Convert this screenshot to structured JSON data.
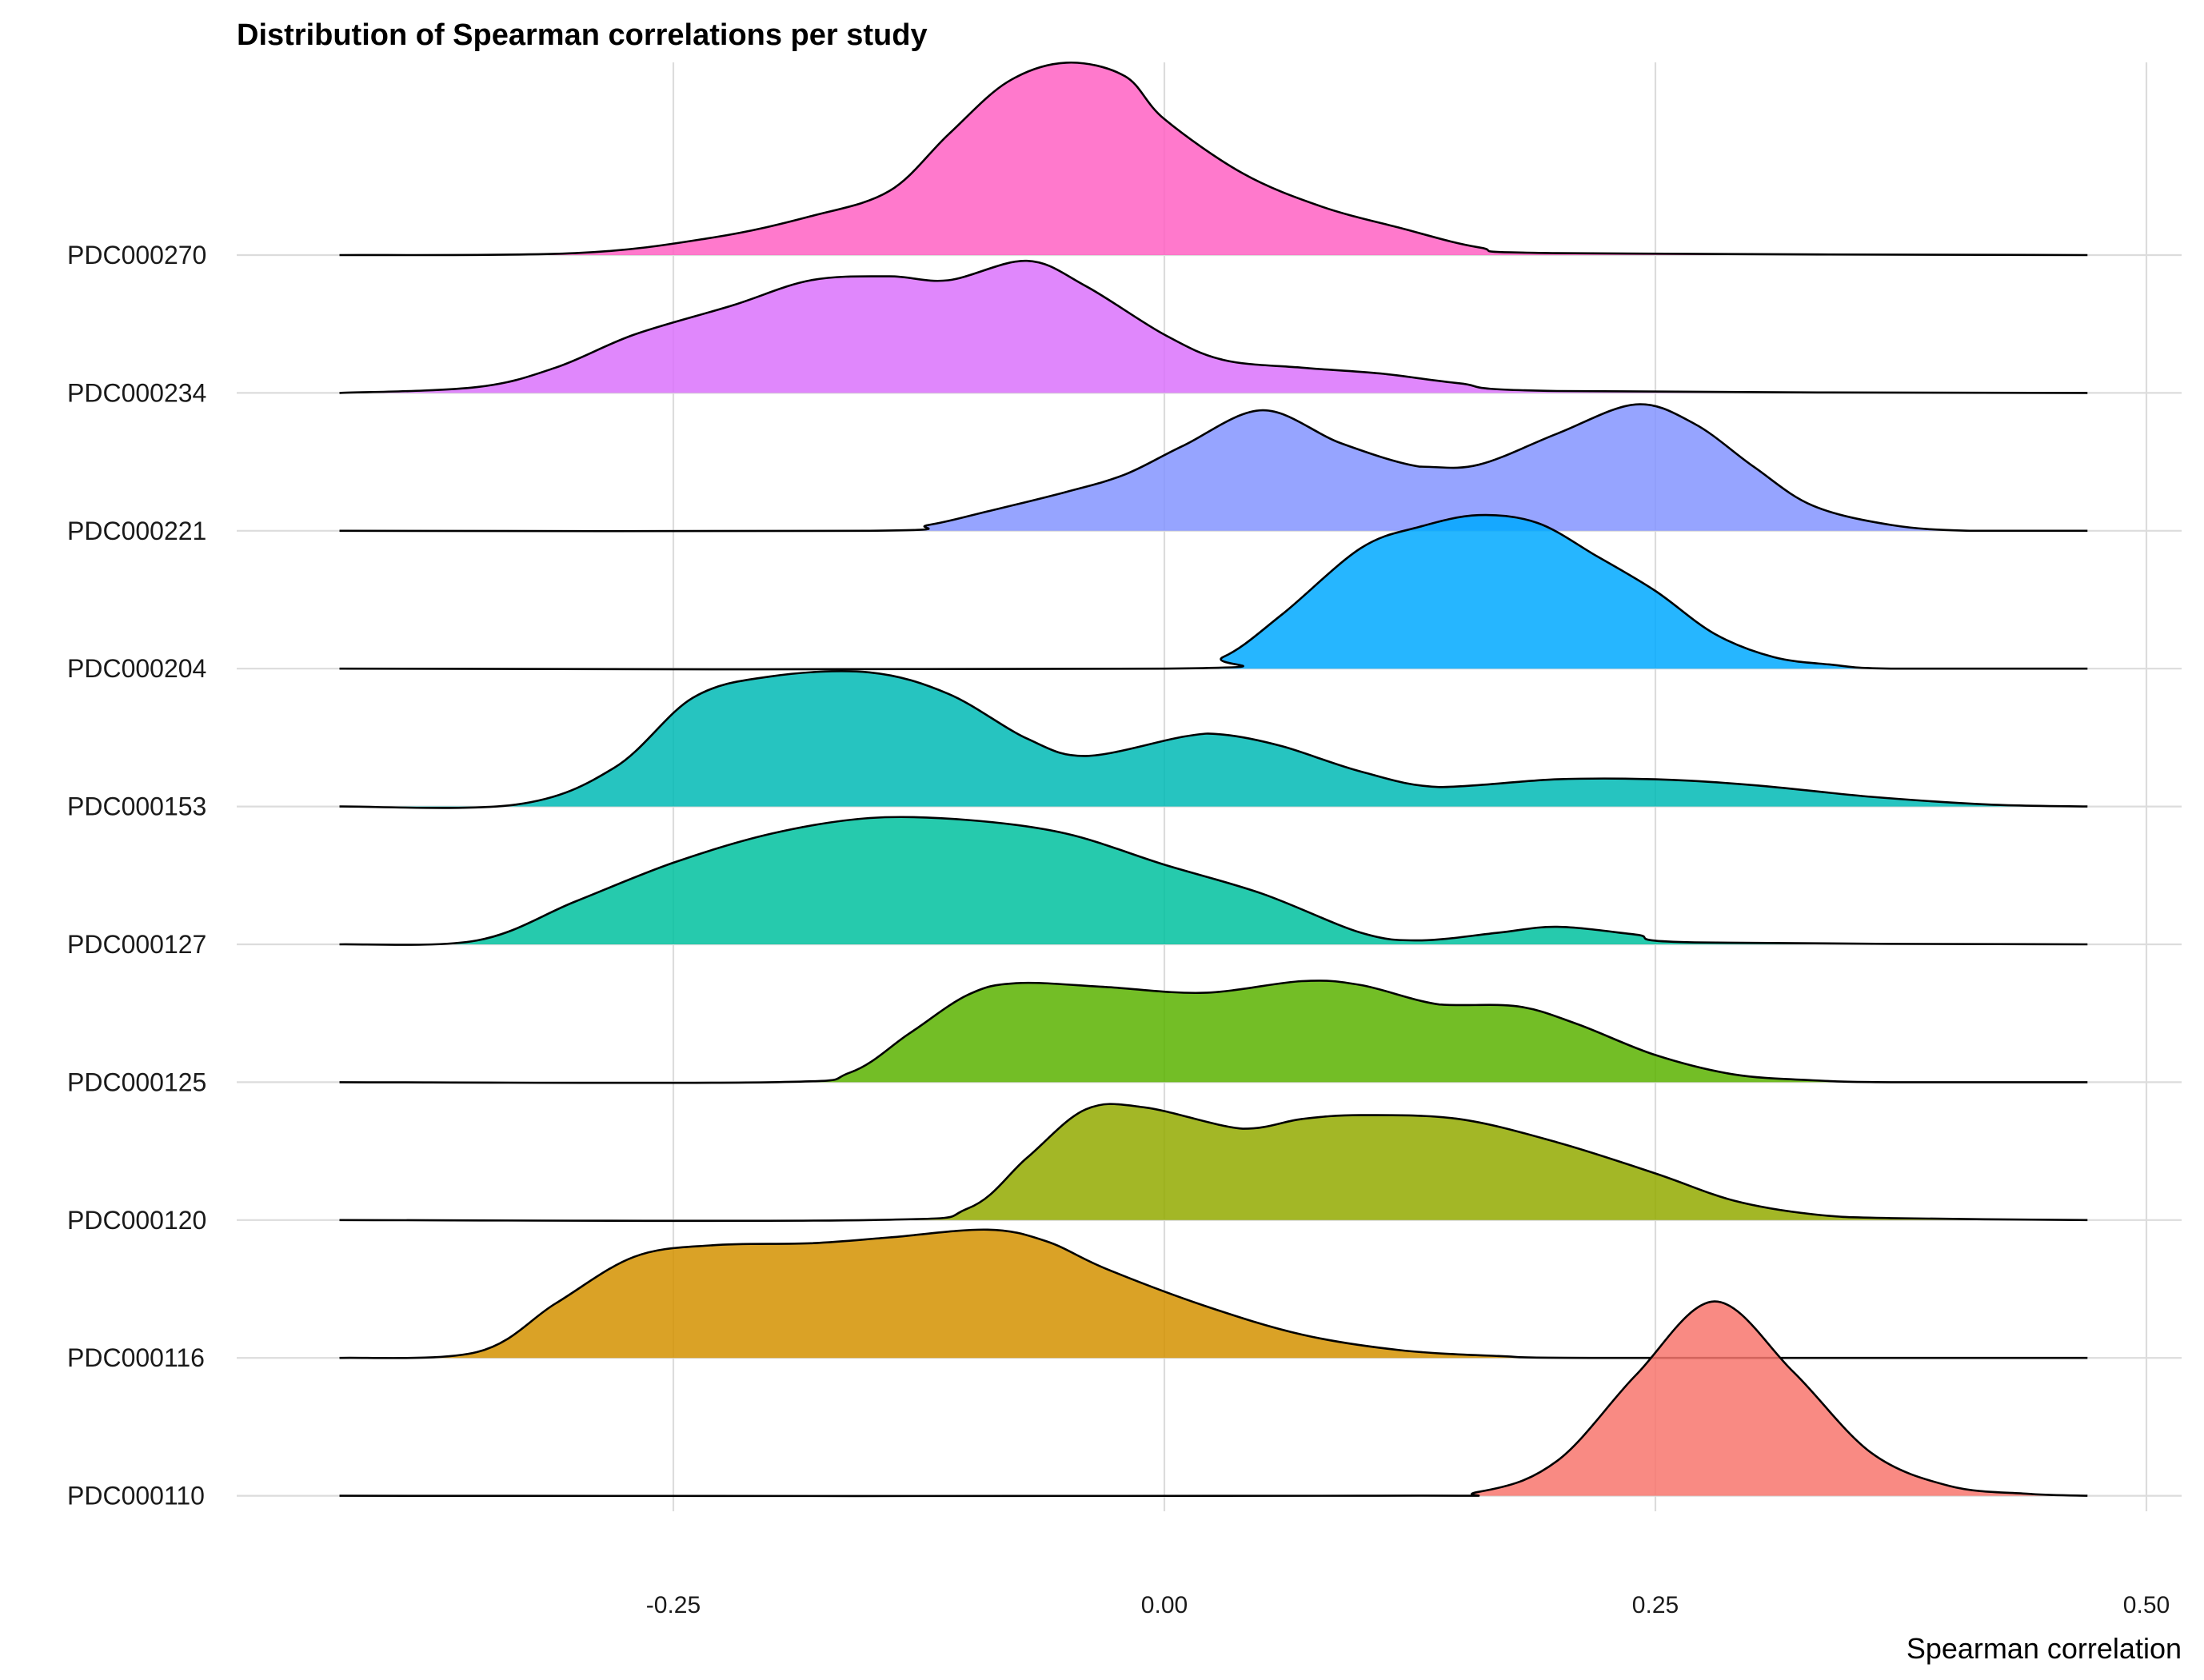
{
  "chart_data": {
    "type": "ridgeline",
    "title": "Distribution of Spearman correlations per study",
    "xlabel": "Spearman correlation",
    "ylabel": "",
    "xlim": [
      -0.42,
      0.47
    ],
    "x_ticks": [
      -0.25,
      0.0,
      0.25,
      0.5
    ],
    "x_tick_labels": [
      "-0.25",
      "0.00",
      "0.25",
      "0.50"
    ],
    "grid": true,
    "legend": "none",
    "series": [
      {
        "name": "PDC000110",
        "color": "#F8766D",
        "points": [
          [
            -0.42,
            0
          ],
          [
            0.1,
            0
          ],
          [
            0.16,
            0.02
          ],
          [
            0.2,
            0.18
          ],
          [
            0.24,
            0.62
          ],
          [
            0.28,
            1.0
          ],
          [
            0.32,
            0.64
          ],
          [
            0.36,
            0.22
          ],
          [
            0.4,
            0.05
          ],
          [
            0.44,
            0.01
          ],
          [
            0.47,
            0
          ]
        ]
      },
      {
        "name": "PDC000116",
        "color": "#D39200",
        "points": [
          [
            -0.42,
            0
          ],
          [
            -0.35,
            0.03
          ],
          [
            -0.31,
            0.28
          ],
          [
            -0.27,
            0.52
          ],
          [
            -0.23,
            0.58
          ],
          [
            -0.18,
            0.59
          ],
          [
            -0.14,
            0.62
          ],
          [
            -0.09,
            0.66
          ],
          [
            -0.06,
            0.6
          ],
          [
            -0.03,
            0.46
          ],
          [
            0.02,
            0.27
          ],
          [
            0.07,
            0.12
          ],
          [
            0.12,
            0.04
          ],
          [
            0.17,
            0.01
          ],
          [
            0.22,
            0
          ],
          [
            0.47,
            0
          ]
        ]
      },
      {
        "name": "PDC000120",
        "color": "#93AA00",
        "points": [
          [
            -0.42,
            0
          ],
          [
            -0.15,
            0
          ],
          [
            -0.1,
            0.06
          ],
          [
            -0.07,
            0.32
          ],
          [
            -0.04,
            0.57
          ],
          [
            -0.01,
            0.58
          ],
          [
            0.04,
            0.47
          ],
          [
            0.07,
            0.52
          ],
          [
            0.1,
            0.54
          ],
          [
            0.15,
            0.52
          ],
          [
            0.2,
            0.4
          ],
          [
            0.25,
            0.24
          ],
          [
            0.29,
            0.1
          ],
          [
            0.33,
            0.03
          ],
          [
            0.37,
            0.01
          ],
          [
            0.47,
            0
          ]
        ]
      },
      {
        "name": "PDC000125",
        "color": "#5BB300",
        "points": [
          [
            -0.42,
            0
          ],
          [
            -0.2,
            0
          ],
          [
            -0.16,
            0.05
          ],
          [
            -0.13,
            0.25
          ],
          [
            -0.1,
            0.45
          ],
          [
            -0.075,
            0.51
          ],
          [
            -0.03,
            0.49
          ],
          [
            0.02,
            0.46
          ],
          [
            0.07,
            0.52
          ],
          [
            0.1,
            0.5
          ],
          [
            0.14,
            0.4
          ],
          [
            0.18,
            0.39
          ],
          [
            0.21,
            0.3
          ],
          [
            0.25,
            0.14
          ],
          [
            0.29,
            0.04
          ],
          [
            0.33,
            0.01
          ],
          [
            0.37,
            0
          ],
          [
            0.47,
            0
          ]
        ]
      },
      {
        "name": "PDC000127",
        "color": "#00C19F",
        "points": [
          [
            -0.42,
            0
          ],
          [
            -0.35,
            0.02
          ],
          [
            -0.3,
            0.22
          ],
          [
            -0.25,
            0.42
          ],
          [
            -0.2,
            0.57
          ],
          [
            -0.15,
            0.65
          ],
          [
            -0.1,
            0.64
          ],
          [
            -0.05,
            0.57
          ],
          [
            0.0,
            0.41
          ],
          [
            0.05,
            0.26
          ],
          [
            0.1,
            0.06
          ],
          [
            0.13,
            0.02
          ],
          [
            0.17,
            0.06
          ],
          [
            0.2,
            0.09
          ],
          [
            0.24,
            0.05
          ],
          [
            0.27,
            0.01
          ],
          [
            0.47,
            0
          ]
        ]
      },
      {
        "name": "PDC000153",
        "color": "#00BAB5",
        "points": [
          [
            -0.42,
            0
          ],
          [
            -0.33,
            0.01
          ],
          [
            -0.28,
            0.2
          ],
          [
            -0.24,
            0.56
          ],
          [
            -0.2,
            0.67
          ],
          [
            -0.15,
            0.69
          ],
          [
            -0.11,
            0.58
          ],
          [
            -0.07,
            0.35
          ],
          [
            -0.04,
            0.26
          ],
          [
            0.01,
            0.36
          ],
          [
            0.03,
            0.37
          ],
          [
            0.06,
            0.31
          ],
          [
            0.1,
            0.18
          ],
          [
            0.14,
            0.1
          ],
          [
            0.2,
            0.14
          ],
          [
            0.25,
            0.14
          ],
          [
            0.3,
            0.11
          ],
          [
            0.36,
            0.05
          ],
          [
            0.42,
            0.01
          ],
          [
            0.47,
            0
          ]
        ]
      },
      {
        "name": "PDC000204",
        "color": "#00A9FF",
        "points": [
          [
            -0.42,
            0
          ],
          [
            0.0,
            0
          ],
          [
            0.03,
            0.06
          ],
          [
            0.06,
            0.28
          ],
          [
            0.1,
            0.62
          ],
          [
            0.13,
            0.73
          ],
          [
            0.16,
            0.79
          ],
          [
            0.19,
            0.75
          ],
          [
            0.22,
            0.58
          ],
          [
            0.25,
            0.4
          ],
          [
            0.28,
            0.18
          ],
          [
            0.31,
            0.06
          ],
          [
            0.34,
            0.02
          ],
          [
            0.37,
            0
          ],
          [
            0.47,
            0
          ]
        ]
      },
      {
        "name": "PDC000221",
        "color": "#8494FF",
        "points": [
          [
            -0.42,
            0
          ],
          [
            -0.15,
            0
          ],
          [
            -0.12,
            0.03
          ],
          [
            -0.09,
            0.1
          ],
          [
            -0.05,
            0.2
          ],
          [
            -0.02,
            0.29
          ],
          [
            0.01,
            0.44
          ],
          [
            0.05,
            0.62
          ],
          [
            0.09,
            0.45
          ],
          [
            0.13,
            0.33
          ],
          [
            0.16,
            0.34
          ],
          [
            0.2,
            0.5
          ],
          [
            0.24,
            0.65
          ],
          [
            0.27,
            0.55
          ],
          [
            0.3,
            0.33
          ],
          [
            0.33,
            0.13
          ],
          [
            0.37,
            0.03
          ],
          [
            0.41,
            0
          ],
          [
            0.47,
            0
          ]
        ]
      },
      {
        "name": "PDC000234",
        "color": "#DB72FB",
        "points": [
          [
            -0.42,
            0
          ],
          [
            -0.35,
            0.03
          ],
          [
            -0.31,
            0.13
          ],
          [
            -0.27,
            0.3
          ],
          [
            -0.22,
            0.45
          ],
          [
            -0.18,
            0.58
          ],
          [
            -0.14,
            0.6
          ],
          [
            -0.11,
            0.58
          ],
          [
            -0.07,
            0.68
          ],
          [
            -0.04,
            0.55
          ],
          [
            0.0,
            0.3
          ],
          [
            0.03,
            0.17
          ],
          [
            0.07,
            0.13
          ],
          [
            0.11,
            0.1
          ],
          [
            0.15,
            0.05
          ],
          [
            0.2,
            0.01
          ],
          [
            0.47,
            0
          ]
        ]
      },
      {
        "name": "PDC000270",
        "color": "#FF61C3",
        "points": [
          [
            -0.42,
            0
          ],
          [
            -0.3,
            0.01
          ],
          [
            -0.23,
            0.09
          ],
          [
            -0.18,
            0.2
          ],
          [
            -0.14,
            0.33
          ],
          [
            -0.11,
            0.62
          ],
          [
            -0.08,
            0.89
          ],
          [
            -0.05,
            0.99
          ],
          [
            -0.02,
            0.92
          ],
          [
            0.0,
            0.7
          ],
          [
            0.04,
            0.42
          ],
          [
            0.08,
            0.25
          ],
          [
            0.12,
            0.14
          ],
          [
            0.16,
            0.04
          ],
          [
            0.2,
            0.01
          ],
          [
            0.47,
            0
          ]
        ]
      }
    ]
  }
}
